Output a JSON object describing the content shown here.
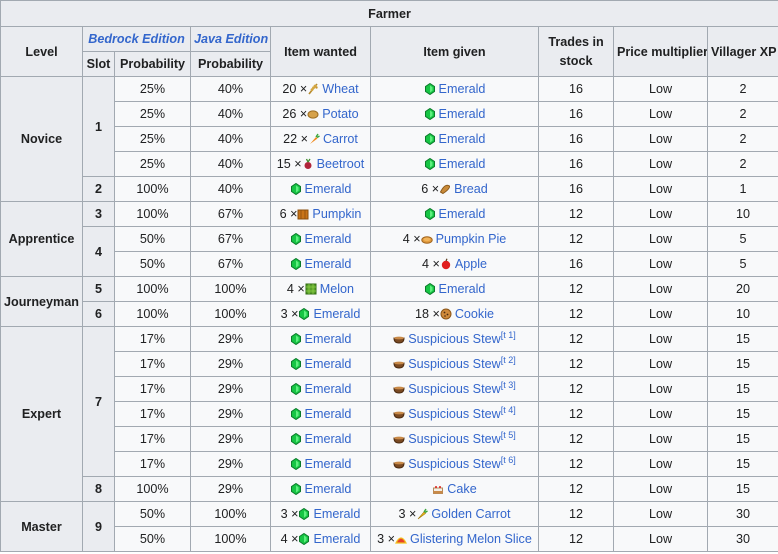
{
  "title": "Farmer",
  "headers": {
    "level": "Level",
    "bedrock": "Bedrock Edition",
    "java": "Java Edition",
    "item_wanted": "Item wanted",
    "item_given": "Item given",
    "trades_in_stock": "Trades in stock",
    "price_multiplier": "Price multiplier",
    "villager_xp": "Villager XP",
    "slot": "Slot",
    "probability_bedrock": "Probability",
    "probability_java": "Probability"
  },
  "groups": [
    {
      "level": "Novice",
      "slots": [
        {
          "slot": "1",
          "rows": [
            {
              "bedrock": "25%",
              "java": "40%",
              "wanted_count": "20 ×",
              "wanted_item": "Wheat",
              "wanted_icon": "wheat-icon",
              "given_count": "",
              "given_item": "Emerald",
              "given_icon": "emerald-icon",
              "given_note": "",
              "stock": "16",
              "mult": "Low",
              "xp": "2"
            },
            {
              "bedrock": "25%",
              "java": "40%",
              "wanted_count": "26 ×",
              "wanted_item": "Potato",
              "wanted_icon": "potato-icon",
              "given_count": "",
              "given_item": "Emerald",
              "given_icon": "emerald-icon",
              "given_note": "",
              "stock": "16",
              "mult": "Low",
              "xp": "2"
            },
            {
              "bedrock": "25%",
              "java": "40%",
              "wanted_count": "22 ×",
              "wanted_item": "Carrot",
              "wanted_icon": "carrot-icon",
              "given_count": "",
              "given_item": "Emerald",
              "given_icon": "emerald-icon",
              "given_note": "",
              "stock": "16",
              "mult": "Low",
              "xp": "2"
            },
            {
              "bedrock": "25%",
              "java": "40%",
              "wanted_count": "15 ×",
              "wanted_item": "Beetroot",
              "wanted_icon": "beetroot-icon",
              "given_count": "",
              "given_item": "Emerald",
              "given_icon": "emerald-icon",
              "given_note": "",
              "stock": "16",
              "mult": "Low",
              "xp": "2"
            }
          ]
        },
        {
          "slot": "2",
          "rows": [
            {
              "bedrock": "100%",
              "java": "40%",
              "wanted_count": "",
              "wanted_item": "Emerald",
              "wanted_icon": "emerald-icon",
              "given_count": "6 ×",
              "given_item": "Bread",
              "given_icon": "bread-icon",
              "given_note": "",
              "stock": "16",
              "mult": "Low",
              "xp": "1"
            }
          ]
        }
      ]
    },
    {
      "level": "Apprentice",
      "slots": [
        {
          "slot": "3",
          "rows": [
            {
              "bedrock": "100%",
              "java": "67%",
              "wanted_count": "6 ×",
              "wanted_item": "Pumpkin",
              "wanted_icon": "pumpkin-icon",
              "given_count": "",
              "given_item": "Emerald",
              "given_icon": "emerald-icon",
              "given_note": "",
              "stock": "12",
              "mult": "Low",
              "xp": "10"
            }
          ]
        },
        {
          "slot": "4",
          "rows": [
            {
              "bedrock": "50%",
              "java": "67%",
              "wanted_count": "",
              "wanted_item": "Emerald",
              "wanted_icon": "emerald-icon",
              "given_count": "4 ×",
              "given_item": "Pumpkin Pie",
              "given_icon": "pumpkin-pie-icon",
              "given_note": "",
              "stock": "12",
              "mult": "Low",
              "xp": "5"
            },
            {
              "bedrock": "50%",
              "java": "67%",
              "wanted_count": "",
              "wanted_item": "Emerald",
              "wanted_icon": "emerald-icon",
              "given_count": "4 ×",
              "given_item": "Apple",
              "given_icon": "apple-icon",
              "given_note": "",
              "stock": "16",
              "mult": "Low",
              "xp": "5"
            }
          ]
        }
      ]
    },
    {
      "level": "Journeyman",
      "slots": [
        {
          "slot": "5",
          "rows": [
            {
              "bedrock": "100%",
              "java": "100%",
              "wanted_count": "4 ×",
              "wanted_item": "Melon",
              "wanted_icon": "melon-icon",
              "given_count": "",
              "given_item": "Emerald",
              "given_icon": "emerald-icon",
              "given_note": "",
              "stock": "12",
              "mult": "Low",
              "xp": "20"
            }
          ]
        },
        {
          "slot": "6",
          "rows": [
            {
              "bedrock": "100%",
              "java": "100%",
              "wanted_count": "3 ×",
              "wanted_item": "Emerald",
              "wanted_icon": "emerald-icon",
              "given_count": "18 ×",
              "given_item": "Cookie",
              "given_icon": "cookie-icon",
              "given_note": "",
              "stock": "12",
              "mult": "Low",
              "xp": "10"
            }
          ]
        }
      ]
    },
    {
      "level": "Expert",
      "slots": [
        {
          "slot": "7",
          "rows": [
            {
              "bedrock": "17%",
              "java": "29%",
              "wanted_count": "",
              "wanted_item": "Emerald",
              "wanted_icon": "emerald-icon",
              "given_count": "",
              "given_item": "Suspicious Stew",
              "given_icon": "suspicious-stew-icon",
              "given_note": "[t 1]",
              "stock": "12",
              "mult": "Low",
              "xp": "15"
            },
            {
              "bedrock": "17%",
              "java": "29%",
              "wanted_count": "",
              "wanted_item": "Emerald",
              "wanted_icon": "emerald-icon",
              "given_count": "",
              "given_item": "Suspicious Stew",
              "given_icon": "suspicious-stew-icon",
              "given_note": "[t 2]",
              "stock": "12",
              "mult": "Low",
              "xp": "15"
            },
            {
              "bedrock": "17%",
              "java": "29%",
              "wanted_count": "",
              "wanted_item": "Emerald",
              "wanted_icon": "emerald-icon",
              "given_count": "",
              "given_item": "Suspicious Stew",
              "given_icon": "suspicious-stew-icon",
              "given_note": "[t 3]",
              "stock": "12",
              "mult": "Low",
              "xp": "15"
            },
            {
              "bedrock": "17%",
              "java": "29%",
              "wanted_count": "",
              "wanted_item": "Emerald",
              "wanted_icon": "emerald-icon",
              "given_count": "",
              "given_item": "Suspicious Stew",
              "given_icon": "suspicious-stew-icon",
              "given_note": "[t 4]",
              "stock": "12",
              "mult": "Low",
              "xp": "15"
            },
            {
              "bedrock": "17%",
              "java": "29%",
              "wanted_count": "",
              "wanted_item": "Emerald",
              "wanted_icon": "emerald-icon",
              "given_count": "",
              "given_item": "Suspicious Stew",
              "given_icon": "suspicious-stew-icon",
              "given_note": "[t 5]",
              "stock": "12",
              "mult": "Low",
              "xp": "15"
            },
            {
              "bedrock": "17%",
              "java": "29%",
              "wanted_count": "",
              "wanted_item": "Emerald",
              "wanted_icon": "emerald-icon",
              "given_count": "",
              "given_item": "Suspicious Stew",
              "given_icon": "suspicious-stew-icon",
              "given_note": "[t 6]",
              "stock": "12",
              "mult": "Low",
              "xp": "15"
            }
          ]
        },
        {
          "slot": "8",
          "rows": [
            {
              "bedrock": "100%",
              "java": "29%",
              "wanted_count": "",
              "wanted_item": "Emerald",
              "wanted_icon": "emerald-icon",
              "given_count": "",
              "given_item": "Cake",
              "given_icon": "cake-icon",
              "given_note": "",
              "stock": "12",
              "mult": "Low",
              "xp": "15"
            }
          ]
        }
      ]
    },
    {
      "level": "Master",
      "slots": [
        {
          "slot": "9",
          "rows": [
            {
              "bedrock": "50%",
              "java": "100%",
              "wanted_count": "3 ×",
              "wanted_item": "Emerald",
              "wanted_icon": "emerald-icon",
              "given_count": "3 ×",
              "given_item": "Golden Carrot",
              "given_icon": "golden-carrot-icon",
              "given_note": "",
              "stock": "12",
              "mult": "Low",
              "xp": "30"
            },
            {
              "bedrock": "50%",
              "java": "100%",
              "wanted_count": "4 ×",
              "wanted_item": "Emerald",
              "wanted_icon": "emerald-icon",
              "given_count": "3 ×",
              "given_item": "Glistering Melon Slice",
              "given_icon": "glistering-melon-slice-icon",
              "given_note": "",
              "stock": "12",
              "mult": "Low",
              "xp": "30"
            }
          ]
        }
      ]
    }
  ]
}
